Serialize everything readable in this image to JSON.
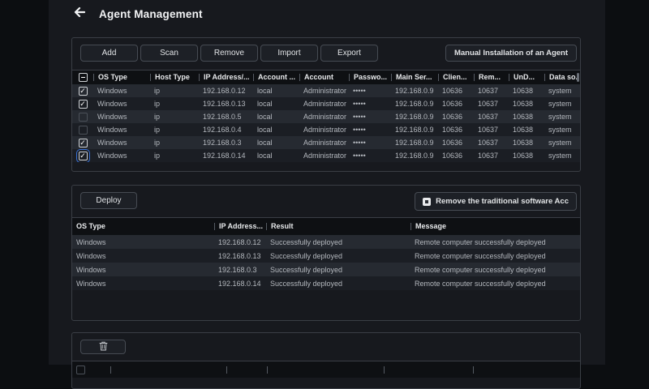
{
  "header": {
    "title": "Agent Management"
  },
  "toolbar": {
    "buttons": [
      "Add",
      "Scan",
      "Remove",
      "Import",
      "Export"
    ],
    "manual_install": "Manual Installation of an Agent"
  },
  "colors": {
    "focus_ring": "#3a72d8",
    "row_light": "#262a31",
    "row_dark": "#1b1e24"
  },
  "agents_table": {
    "select_all_state": "indeterminate",
    "columns": [
      "OS Type",
      "Host Type",
      "IP Address/...",
      "Account ...",
      "Account",
      "Passwo...",
      "Main Ser...",
      "Clien...",
      "Rem...",
      "UnD...",
      "Data so..."
    ],
    "rows": [
      {
        "checked": true,
        "focused": false,
        "cells": [
          "Windows",
          "ip",
          "192.168.0.12",
          "local",
          "Administrator",
          "•••••",
          "192.168.0.9",
          "10636",
          "10637",
          "10638",
          "system"
        ]
      },
      {
        "checked": true,
        "focused": false,
        "cells": [
          "Windows",
          "ip",
          "192.168.0.13",
          "local",
          "Administrator",
          "•••••",
          "192.168.0.9",
          "10636",
          "10637",
          "10638",
          "system"
        ]
      },
      {
        "checked": false,
        "focused": false,
        "cells": [
          "Windows",
          "ip",
          "192.168.0.5",
          "local",
          "Administrator",
          "•••••",
          "192.168.0.9",
          "10636",
          "10637",
          "10638",
          "system"
        ]
      },
      {
        "checked": false,
        "focused": false,
        "cells": [
          "Windows",
          "ip",
          "192.168.0.4",
          "local",
          "Administrator",
          "•••••",
          "192.168.0.9",
          "10636",
          "10637",
          "10638",
          "system"
        ]
      },
      {
        "checked": true,
        "focused": false,
        "cells": [
          "Windows",
          "ip",
          "192.168.0.3",
          "local",
          "Administrator",
          "•••••",
          "192.168.0.9",
          "10636",
          "10637",
          "10638",
          "system"
        ]
      },
      {
        "checked": true,
        "focused": true,
        "cells": [
          "Windows",
          "ip",
          "192.168.0.14",
          "local",
          "Administrator",
          "•••••",
          "192.168.0.9",
          "10636",
          "10637",
          "10638",
          "system"
        ]
      }
    ]
  },
  "deploy_section": {
    "deploy_label": "Deploy",
    "remove_acc_label": "Remove the traditional software Acc",
    "remove_acc_checked": true,
    "table": {
      "columns": [
        "OS Type",
        "IP Address...",
        "Result",
        "Message"
      ],
      "rows": [
        [
          "Windows",
          "192.168.0.12",
          "Successfully deployed",
          "Remote computer successfully deployed"
        ],
        [
          "Windows",
          "192.168.0.13",
          "Successfully deployed",
          "Remote computer successfully deployed"
        ],
        [
          "Windows",
          "192.168.0.3",
          "Successfully deployed",
          "Remote computer successfully deployed"
        ],
        [
          "Windows",
          "192.168.0.14",
          "Successfully deployed",
          "Remote computer successfully deployed"
        ]
      ]
    }
  },
  "bottom_section": {
    "delete_button_icon": "trash-icon"
  }
}
